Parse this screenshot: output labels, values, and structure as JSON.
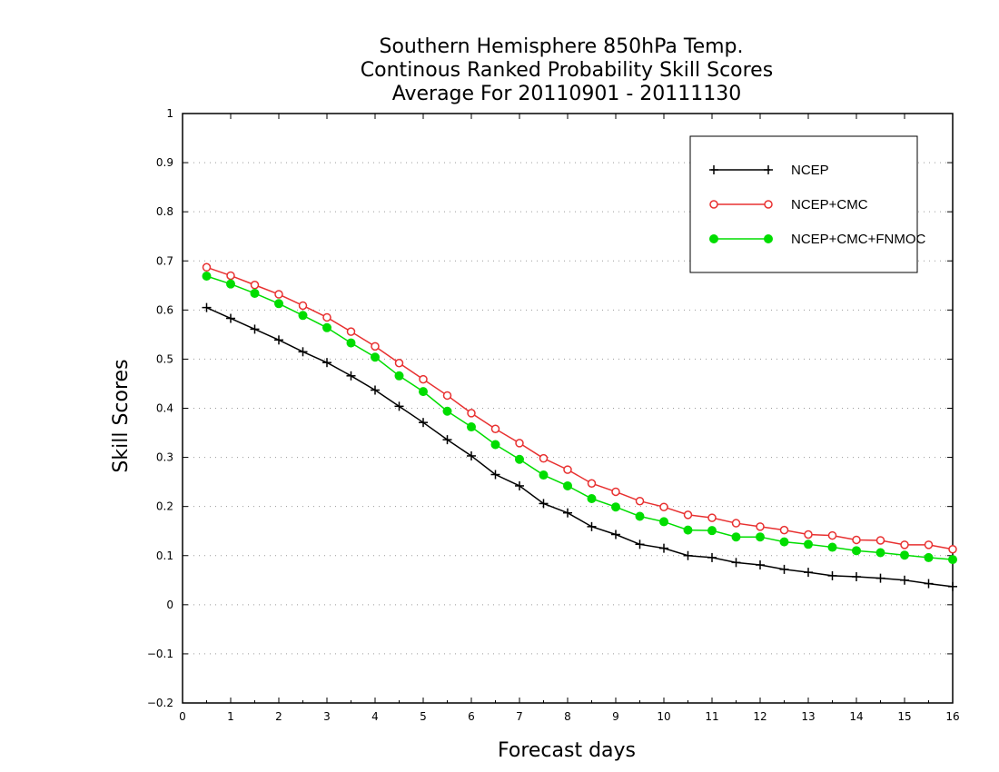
{
  "chart_data": {
    "type": "line",
    "title": [
      "Southern Hemisphere 850hPa Temp.",
      "Continous Ranked Probability Skill Scores",
      "Average For 20110901 - 20111130"
    ],
    "xlabel": "Forecast days",
    "ylabel": "Skill Scores",
    "xlim": [
      0,
      16
    ],
    "ylim": [
      -0.2,
      1
    ],
    "x_ticks": [
      0,
      1,
      2,
      3,
      4,
      5,
      6,
      7,
      8,
      9,
      10,
      11,
      12,
      13,
      14,
      15,
      16
    ],
    "x_tick_labels": [
      "0",
      "1",
      "2",
      "3",
      "4",
      "5",
      "6",
      "7",
      "8",
      "9",
      "10",
      "11",
      "12",
      "13",
      "14",
      "15",
      "16"
    ],
    "y_ticks": [
      -0.2,
      -0.1,
      0,
      0.1,
      0.2,
      0.3,
      0.4,
      0.5,
      0.6,
      0.7,
      0.8,
      0.9,
      1
    ],
    "y_tick_labels": [
      "−0.2",
      "−0.1",
      "0",
      "0.1",
      "0.2",
      "0.3",
      "0.4",
      "0.5",
      "0.6",
      "0.7",
      "0.8",
      "0.9",
      "1"
    ],
    "grid": "horizontal dotted",
    "legend_position": "top-right",
    "x": [
      0.5,
      1,
      1.5,
      2,
      2.5,
      3,
      3.5,
      4,
      4.5,
      5,
      5.5,
      6,
      6.5,
      7,
      7.5,
      8,
      8.5,
      9,
      9.5,
      10,
      10.5,
      11,
      11.5,
      12,
      12.5,
      13,
      13.5,
      14,
      14.5,
      15,
      15.5,
      16
    ],
    "series": [
      {
        "name": "NCEP",
        "color": "#000000",
        "marker": "plus",
        "values": [
          0.605,
          0.583,
          0.561,
          0.539,
          0.515,
          0.493,
          0.466,
          0.437,
          0.404,
          0.371,
          0.336,
          0.303,
          0.265,
          0.242,
          0.206,
          0.187,
          0.159,
          0.143,
          0.123,
          0.115,
          0.1,
          0.096,
          0.086,
          0.081,
          0.072,
          0.066,
          0.059,
          0.057,
          0.054,
          0.05,
          0.043,
          0.037
        ]
      },
      {
        "name": "NCEP+CMC",
        "color": "#e83030",
        "marker": "open-circle",
        "values": [
          0.687,
          0.67,
          0.651,
          0.632,
          0.609,
          0.585,
          0.556,
          0.526,
          0.492,
          0.459,
          0.426,
          0.39,
          0.358,
          0.329,
          0.298,
          0.275,
          0.247,
          0.23,
          0.211,
          0.199,
          0.183,
          0.177,
          0.166,
          0.159,
          0.152,
          0.143,
          0.141,
          0.132,
          0.131,
          0.122,
          0.122,
          0.113
        ]
      },
      {
        "name": "NCEP+CMC+FNMOC",
        "color": "#00dd00",
        "marker": "filled-circle",
        "values": [
          0.669,
          0.653,
          0.634,
          0.613,
          0.589,
          0.564,
          0.533,
          0.504,
          0.466,
          0.434,
          0.394,
          0.362,
          0.326,
          0.296,
          0.264,
          0.242,
          0.216,
          0.199,
          0.18,
          0.169,
          0.152,
          0.151,
          0.138,
          0.138,
          0.128,
          0.123,
          0.117,
          0.11,
          0.106,
          0.101,
          0.096,
          0.092
        ]
      }
    ]
  }
}
